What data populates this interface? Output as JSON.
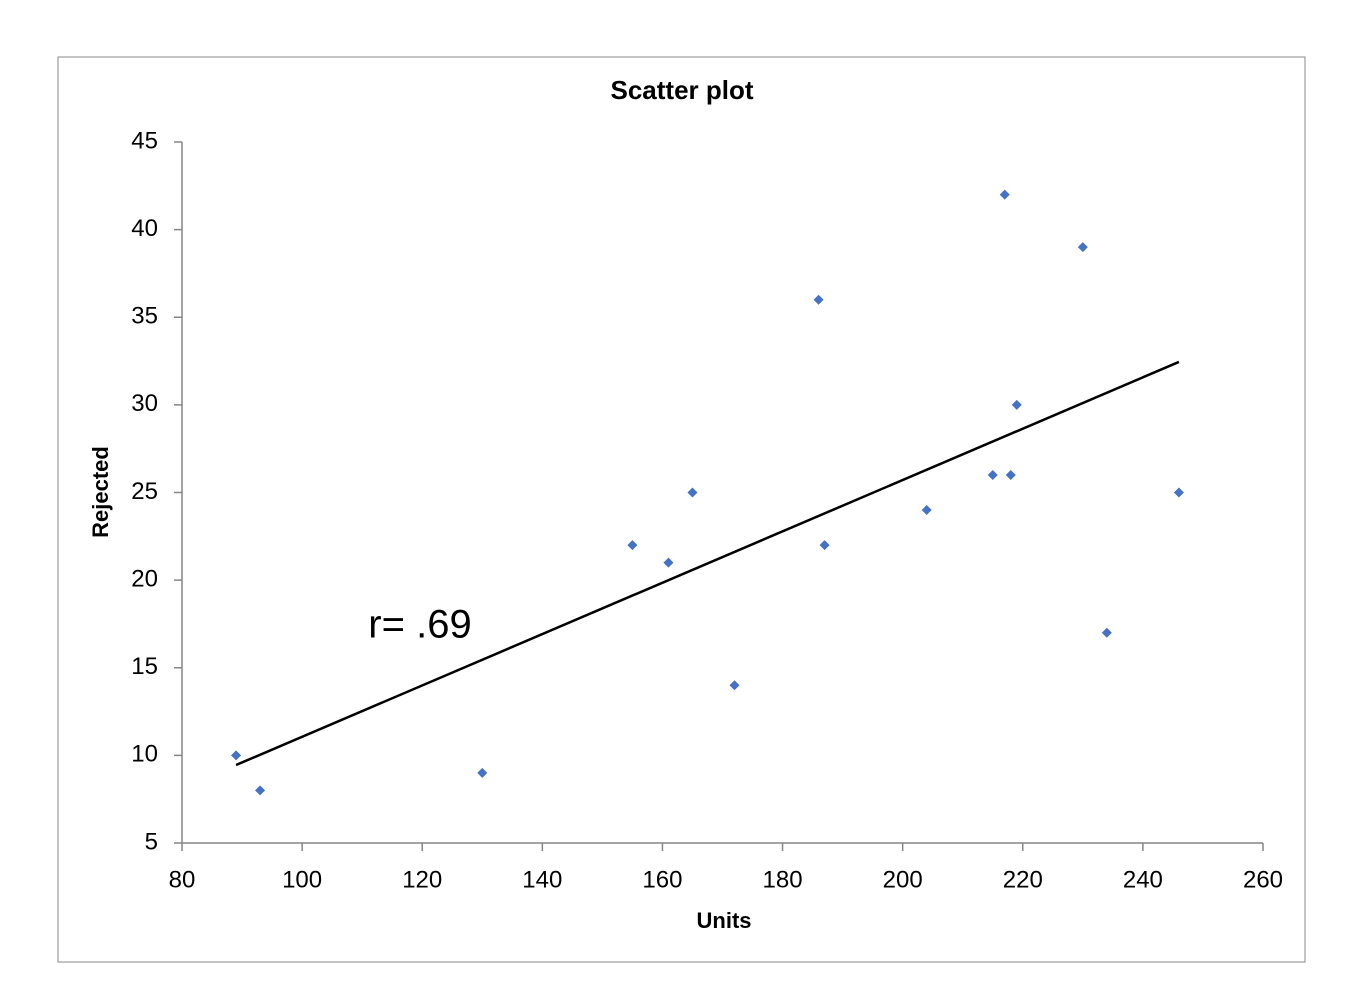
{
  "chart_data": {
    "type": "scatter",
    "title": "Scatter plot",
    "x_label": "Units",
    "y_label": "Rejected",
    "annotation": "r= .69",
    "x": [
      89,
      93,
      130,
      155,
      161,
      165,
      172,
      186,
      187,
      204,
      215,
      217,
      218,
      219,
      230,
      234,
      246
    ],
    "values": [
      10,
      8,
      9,
      22,
      21,
      25,
      14,
      36,
      22,
      24,
      26,
      42,
      26,
      30,
      39,
      17,
      25
    ],
    "color": "#4472c4",
    "trendline": {
      "x": [
        89,
        246
      ],
      "y": [
        9.45,
        32.45
      ],
      "color": "#000000"
    },
    "xlim": [
      80,
      260
    ],
    "xticks": [
      80,
      100,
      120,
      140,
      160,
      180,
      200,
      220,
      240,
      260
    ],
    "ylim": [
      5,
      45
    ],
    "yticks": [
      5,
      10,
      15,
      20,
      25,
      30,
      35,
      40,
      45
    ],
    "grid": false
  }
}
